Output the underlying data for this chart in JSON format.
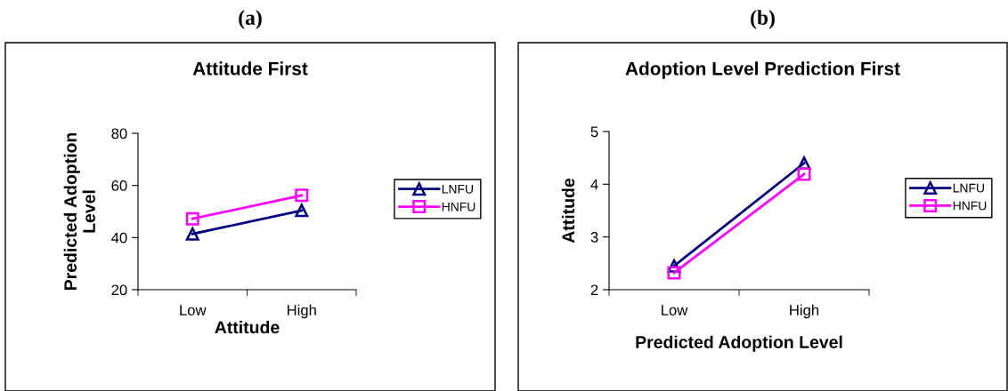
{
  "chart_data": [
    {
      "type": "line",
      "subtitle": "(a)",
      "title": "Attitude First",
      "xlabel": "Attitude",
      "ylabel": "Predicted Adoption\nLevel",
      "categories": [
        "Low",
        "High"
      ],
      "ylim": [
        20,
        80
      ],
      "yticks": [
        20,
        40,
        60,
        80
      ],
      "grid": false,
      "legend": "right",
      "series": [
        {
          "name": "LNFU",
          "color": "#000080",
          "marker": "triangle",
          "values": [
            41.4,
            50.4
          ]
        },
        {
          "name": "HNFU",
          "color": "#ff00ff",
          "marker": "square",
          "values": [
            47.2,
            56.2
          ]
        }
      ]
    },
    {
      "type": "line",
      "subtitle": "(b)",
      "title": "Adoption Level Prediction First",
      "xlabel": "Predicted Adoption Level",
      "ylabel": "Attitude",
      "categories": [
        "Low",
        "High"
      ],
      "ylim": [
        2,
        5
      ],
      "yticks": [
        2,
        3,
        4,
        5
      ],
      "grid": false,
      "legend": "right",
      "series": [
        {
          "name": "LNFU",
          "color": "#000080",
          "marker": "triangle",
          "values": [
            2.45,
            4.4
          ]
        },
        {
          "name": "HNFU",
          "color": "#ff00ff",
          "marker": "square",
          "values": [
            2.32,
            4.19
          ]
        }
      ]
    }
  ]
}
